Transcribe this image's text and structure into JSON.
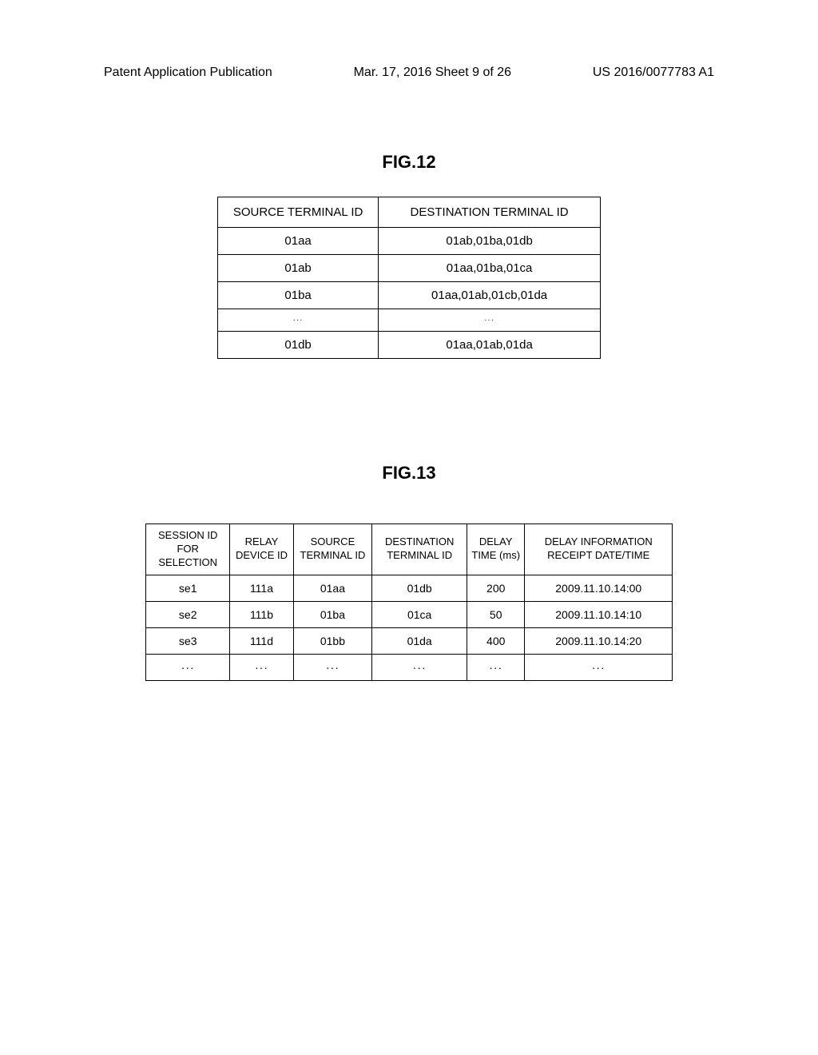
{
  "header": {
    "left": "Patent Application Publication",
    "center": "Mar. 17, 2016  Sheet 9 of 26",
    "right": "US 2016/0077783 A1"
  },
  "fig12": {
    "title": "FIG.12",
    "columns": [
      "SOURCE TERMINAL ID",
      "DESTINATION TERMINAL ID"
    ],
    "rows": [
      [
        "01aa",
        "01ab,01ba,01db"
      ],
      [
        "01ab",
        "01aa,01ba,01ca"
      ],
      [
        "01ba",
        "01aa,01ab,01cb,01da"
      ],
      [
        "···",
        "···"
      ],
      [
        "01db",
        "01aa,01ab,01da"
      ]
    ]
  },
  "fig13": {
    "title": "FIG.13",
    "columns": [
      "SESSION ID FOR SELECTION",
      "RELAY DEVICE ID",
      "SOURCE TERMINAL ID",
      "DESTINATION TERMINAL ID",
      "DELAY TIME (ms)",
      "DELAY INFORMATION RECEIPT DATE/TIME"
    ],
    "rows": [
      [
        "se1",
        "111a",
        "01aa",
        "01db",
        "200",
        "2009.11.10.14:00"
      ],
      [
        "se2",
        "111b",
        "01ba",
        "01ca",
        "50",
        "2009.11.10.14:10"
      ],
      [
        "se3",
        "111d",
        "01bb",
        "01da",
        "400",
        "2009.11.10.14:20"
      ],
      [
        "···",
        "···",
        "···",
        "···",
        "···",
        "···"
      ]
    ],
    "col_widths": [
      "16%",
      "12%",
      "15%",
      "18%",
      "11%",
      "28%"
    ]
  }
}
